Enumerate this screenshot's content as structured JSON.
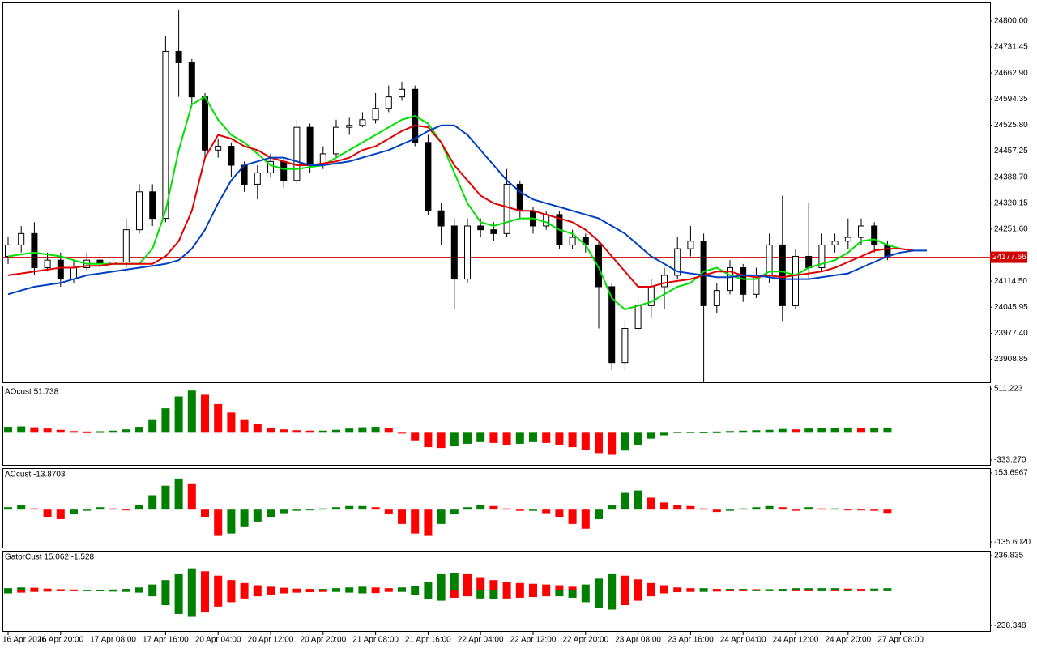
{
  "chart_data": [
    {
      "type": "candlestick",
      "categories": [
        "16 Apr 2026",
        null,
        null,
        null,
        "16 Apr 20:00",
        null,
        null,
        null,
        "17 Apr 08:00",
        null,
        null,
        null,
        "17 Apr 16:00",
        null,
        null,
        null,
        "20 Apr 04:00",
        null,
        null,
        null,
        "20 Apr 12:00",
        null,
        null,
        null,
        "20 Apr 20:00",
        null,
        null,
        null,
        "21 Apr 08:00",
        null,
        null,
        null,
        "21 Apr 16:00",
        null,
        null,
        null,
        "22 Apr 04:00",
        null,
        null,
        null,
        "22 Apr 12:00",
        null,
        null,
        null,
        "22 Apr 20:00",
        null,
        null,
        null,
        "23 Apr 08:00",
        null,
        null,
        null,
        "23 Apr 16:00",
        null,
        null,
        null,
        "24 Apr 04:00",
        null,
        null,
        null,
        "24 Apr 12:00",
        null,
        null,
        null,
        "24 Apr 20:00",
        null,
        null,
        null,
        "27 Apr 08:00",
        null,
        null
      ],
      "open": [
        24180,
        24210,
        24240,
        24150,
        24170,
        24120,
        24150,
        24170,
        24160,
        24165,
        24250,
        24350,
        24280,
        24720,
        24690,
        24600,
        24460,
        24470,
        24420,
        24370,
        24400,
        24430,
        24380,
        24520,
        24420,
        24450,
        24520,
        24525,
        24540,
        24570,
        24600,
        24620,
        24480,
        24300,
        24260,
        24120,
        24260,
        24250,
        24240,
        24370,
        24300,
        24260,
        24290,
        24210,
        24230,
        24210,
        24100,
        23900,
        23990,
        24050,
        24100,
        24130,
        24200,
        24220,
        24050,
        24090,
        24150,
        24080,
        24130,
        24210,
        24050,
        24180,
        24150,
        24210,
        24220,
        24230,
        24260,
        24210,
        null,
        null,
        null
      ],
      "high": [
        24230,
        24260,
        24270,
        24190,
        24190,
        24170,
        24190,
        24185,
        24180,
        24280,
        24370,
        24370,
        24760,
        24830,
        24700,
        24610,
        24490,
        24480,
        24430,
        24420,
        24450,
        24440,
        24540,
        24530,
        24470,
        24540,
        24545,
        24560,
        24610,
        24630,
        24640,
        24630,
        24500,
        24320,
        24280,
        24280,
        24280,
        24270,
        24410,
        24380,
        24310,
        24300,
        24300,
        24250,
        24240,
        24220,
        24110,
        24010,
        24070,
        24120,
        24150,
        24230,
        24260,
        24240,
        24110,
        24170,
        24160,
        24150,
        24240,
        24340,
        24200,
        24320,
        24240,
        24240,
        24280,
        24280,
        24270,
        24220,
        null,
        null,
        null
      ],
      "low": [
        24160,
        24190,
        24130,
        24140,
        24100,
        24110,
        24140,
        24140,
        24150,
        24150,
        24240,
        24260,
        24270,
        24600,
        24580,
        24440,
        24440,
        24390,
        24350,
        24330,
        24390,
        24360,
        24370,
        24400,
        24410,
        24440,
        24500,
        24520,
        24530,
        24560,
        24590,
        24470,
        24290,
        24210,
        24040,
        24110,
        24230,
        24220,
        24230,
        24280,
        24240,
        24250,
        24200,
        24200,
        24190,
        23990,
        23880,
        23880,
        23980,
        24020,
        24040,
        24120,
        24180,
        23850,
        24030,
        24080,
        24060,
        24070,
        24110,
        24010,
        24040,
        24120,
        24140,
        24190,
        24200,
        24210,
        24190,
        24170,
        null,
        null,
        null
      ],
      "close": [
        24210,
        24240,
        24150,
        24170,
        24120,
        24150,
        24170,
        24160,
        24165,
        24250,
        24350,
        24280,
        24720,
        24690,
        24600,
        24460,
        24470,
        24420,
        24370,
        24400,
        24430,
        24380,
        24520,
        24420,
        24450,
        24520,
        24525,
        24540,
        24570,
        24600,
        24620,
        24480,
        24300,
        24260,
        24120,
        24260,
        24250,
        24240,
        24370,
        24300,
        24260,
        24290,
        24210,
        24230,
        24210,
        24100,
        23900,
        23990,
        24050,
        24100,
        24130,
        24200,
        24220,
        24050,
        24090,
        24150,
        24080,
        24130,
        24210,
        24050,
        24180,
        24150,
        24210,
        24220,
        24230,
        24260,
        24210,
        24180,
        null,
        null,
        null
      ],
      "lines": [
        {
          "color": "#00e000",
          "values": [
            24180,
            24185,
            24190,
            24185,
            24180,
            24170,
            24160,
            24160,
            24160,
            24160,
            24160,
            24200,
            24300,
            24460,
            24580,
            24600,
            24540,
            24500,
            24480,
            24450,
            24420,
            24410,
            24410,
            24415,
            24420,
            24440,
            24460,
            24480,
            24500,
            24520,
            24540,
            24550,
            24530,
            24480,
            24400,
            24320,
            24270,
            24260,
            24270,
            24280,
            24280,
            24270,
            24250,
            24240,
            24210,
            24150,
            24070,
            24040,
            24050,
            24060,
            24080,
            24100,
            24110,
            24140,
            24150,
            24130,
            24120,
            24120,
            24140,
            24140,
            24130,
            24150,
            24160,
            24170,
            24190,
            24220,
            24225,
            24210,
            24200,
            null,
            null
          ]
        },
        {
          "color": "#e00000",
          "values": [
            24130,
            24135,
            24140,
            24145,
            24150,
            24150,
            24155,
            24155,
            24160,
            24160,
            24160,
            24160,
            24180,
            24220,
            24300,
            24440,
            24500,
            24490,
            24470,
            24460,
            24440,
            24430,
            24420,
            24420,
            24425,
            24430,
            24440,
            24460,
            24470,
            24490,
            24510,
            24525,
            24520,
            24480,
            24420,
            24380,
            24340,
            24320,
            24310,
            24300,
            24300,
            24290,
            24280,
            24270,
            24250,
            24220,
            24180,
            24140,
            24100,
            24100,
            24110,
            24115,
            24120,
            24130,
            24140,
            24140,
            24130,
            24125,
            24130,
            24125,
            24130,
            24135,
            24140,
            24150,
            24165,
            24180,
            24195,
            24200,
            24200,
            24195,
            null
          ]
        },
        {
          "color": "#0040c0",
          "values": [
            24080,
            24090,
            24100,
            24105,
            24110,
            24120,
            24130,
            24135,
            24140,
            24145,
            24150,
            24155,
            24160,
            24170,
            24200,
            24250,
            24320,
            24380,
            24420,
            24430,
            24440,
            24440,
            24430,
            24420,
            24420,
            24425,
            24430,
            24440,
            24450,
            24460,
            24475,
            24490,
            24510,
            24525,
            24525,
            24500,
            24460,
            24420,
            24380,
            24350,
            24330,
            24320,
            24310,
            24300,
            24290,
            24280,
            24260,
            24240,
            24210,
            24180,
            24160,
            24140,
            24135,
            24130,
            24125,
            24125,
            24130,
            24130,
            24125,
            24120,
            24120,
            24120,
            24125,
            24130,
            24135,
            24150,
            24165,
            24180,
            24190,
            24195,
            24195
          ]
        }
      ],
      "up_color": "#ffffff",
      "down_color": "#000000",
      "current_price": 24177.66,
      "current_price_color": "#d00000",
      "ylim": [
        23848.1,
        24846.8
      ],
      "yticks": [
        {
          "value": 24800,
          "label": "24800.00"
        },
        24731.45,
        {
          "value": 24662.9,
          "label": "24662.90"
        },
        24594.35,
        {
          "value": 24525.8,
          "label": "24525.80"
        },
        24457.25,
        {
          "value": 24388.7,
          "label": "24388.70"
        },
        24320.15,
        {
          "value": 24251.6,
          "label": "24251.60"
        },
        {
          "value": 24114.5,
          "label": "24114.50"
        },
        24045.95,
        {
          "value": 23977.4,
          "label": "23977.40"
        },
        23908.85
      ]
    },
    {
      "type": "bar",
      "title": "AOcust 51.738",
      "values": [
        60,
        65,
        55,
        40,
        25,
        10,
        5,
        8,
        15,
        30,
        60,
        150,
        280,
        420,
        490,
        440,
        330,
        230,
        150,
        90,
        50,
        30,
        20,
        15,
        15,
        25,
        40,
        55,
        60,
        50,
        -20,
        -100,
        -180,
        -190,
        -170,
        -140,
        -120,
        -130,
        -150,
        -140,
        -120,
        -130,
        -150,
        -180,
        -210,
        -250,
        -270,
        -220,
        -150,
        -80,
        -40,
        -15,
        -5,
        2,
        5,
        10,
        15,
        20,
        25,
        35,
        30,
        40,
        45,
        50,
        52,
        48,
        50,
        52,
        null,
        null,
        null
      ],
      "up_color": "#008000",
      "down_color": "#ff0000",
      "ylim": [
        -390,
        540
      ],
      "yticks": [
        511.223,
        {
          "value": -333.27,
          "label": "-333.270"
        }
      ]
    },
    {
      "type": "bar",
      "title": "ACcust -13.8703",
      "values": [
        10,
        20,
        5,
        -30,
        -40,
        -20,
        -5,
        10,
        5,
        0,
        20,
        60,
        100,
        130,
        110,
        -30,
        -110,
        -100,
        -70,
        -50,
        -30,
        -15,
        -5,
        0,
        5,
        10,
        15,
        15,
        10,
        -20,
        -60,
        -100,
        -110,
        -60,
        -20,
        10,
        20,
        15,
        5,
        -5,
        -5,
        -15,
        -30,
        -60,
        -80,
        -40,
        20,
        70,
        80,
        50,
        30,
        20,
        15,
        5,
        -10,
        -5,
        5,
        10,
        15,
        10,
        -5,
        10,
        5,
        5,
        0,
        -3,
        -5,
        -14,
        null,
        null,
        null
      ],
      "up_color": "#008000",
      "down_color": "#ff0000",
      "ylim": [
        -158.9,
        170.3
      ],
      "yticks": [
        153.6967,
        {
          "value": -135.602,
          "label": "-135.6020"
        }
      ]
    },
    {
      "type": "gator",
      "title": "GatorCust 15.062 -1.528",
      "upper": [
        15,
        20,
        18,
        12,
        8,
        6,
        5,
        5,
        6,
        10,
        20,
        40,
        70,
        110,
        150,
        130,
        100,
        70,
        50,
        35,
        25,
        18,
        12,
        10,
        10,
        15,
        20,
        25,
        20,
        15,
        20,
        30,
        60,
        110,
        120,
        110,
        90,
        70,
        60,
        50,
        45,
        40,
        35,
        25,
        40,
        80,
        110,
        100,
        75,
        50,
        35,
        20,
        15,
        15,
        10,
        10,
        10,
        8,
        8,
        10,
        15,
        15,
        15,
        15,
        12,
        10,
        12,
        15,
        null,
        null,
        null
      ],
      "lower": [
        -20,
        -15,
        -10,
        -8,
        -6,
        -5,
        -5,
        -6,
        -8,
        -10,
        -15,
        -40,
        -100,
        -160,
        -180,
        -150,
        -110,
        -80,
        -55,
        -40,
        -28,
        -20,
        -15,
        -12,
        -10,
        -10,
        -15,
        -20,
        -18,
        -10,
        -10,
        -30,
        -60,
        -70,
        -50,
        -40,
        -55,
        -60,
        -55,
        -50,
        -45,
        -40,
        -40,
        -50,
        -80,
        -120,
        -130,
        -100,
        -70,
        -40,
        -20,
        -12,
        -10,
        -10,
        -8,
        -6,
        -5,
        -5,
        -5,
        -6,
        -5,
        -4,
        -4,
        -3,
        -3,
        -2,
        -2,
        -2,
        null,
        null,
        null
      ],
      "up_color": "#008000",
      "down_color": "#ff0000",
      "ylim": [
        -276.1,
        263.8
      ],
      "yticks": [
        236.835,
        -238.348
      ]
    }
  ]
}
